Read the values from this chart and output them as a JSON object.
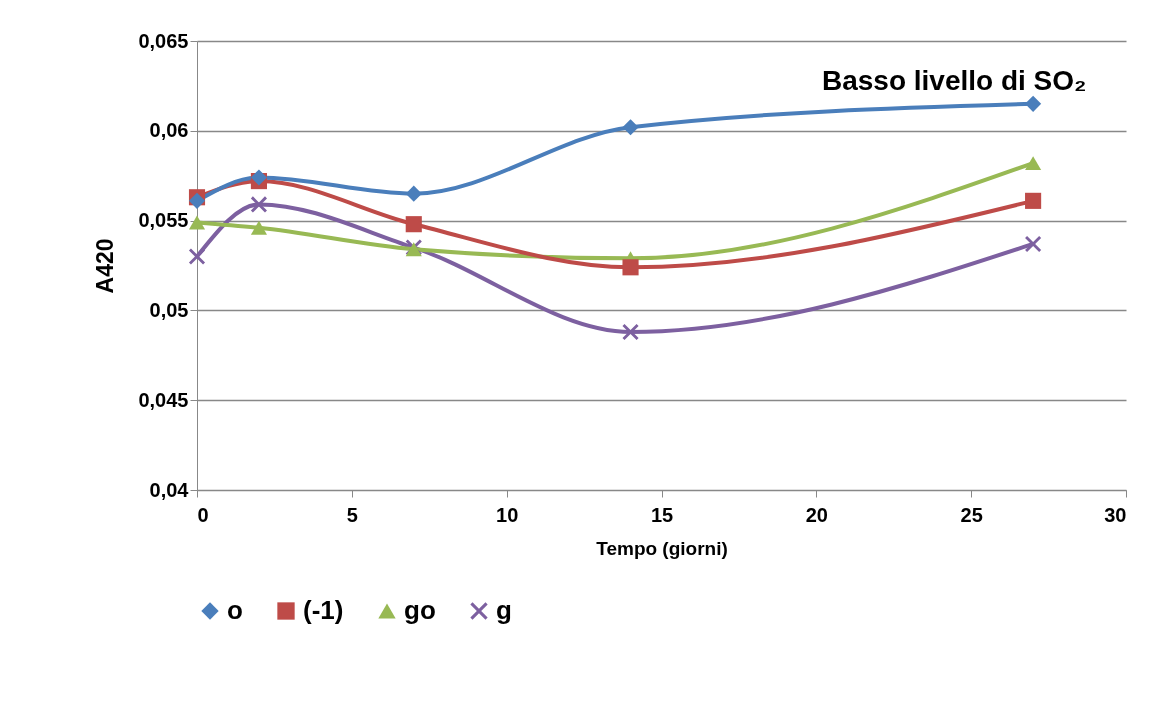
{
  "chart_data": {
    "type": "line",
    "title": "Basso livello di SO₂",
    "xlabel": "Tempo (giorni)",
    "ylabel": "A420",
    "x": [
      0,
      2,
      7,
      14,
      27
    ],
    "series": [
      {
        "name": "o",
        "color": "#4a7ebb",
        "marker": "diamond",
        "values": [
          0.0561,
          0.0574,
          0.0565,
          0.0602,
          0.0615
        ]
      },
      {
        "name": "(-1)",
        "color": "#be4b48",
        "marker": "square",
        "values": [
          0.0563,
          0.0572,
          0.0548,
          0.0524,
          0.0561
        ]
      },
      {
        "name": "go",
        "color": "#98b954",
        "marker": "triangle",
        "values": [
          0.0549,
          0.0546,
          0.0534,
          0.0529,
          0.0582
        ]
      },
      {
        "name": "g",
        "color": "#7d60a0",
        "marker": "cross",
        "values": [
          0.053,
          0.0559,
          0.0535,
          0.0488,
          0.0537
        ]
      }
    ],
    "xlim": [
      0,
      30
    ],
    "xticks": [
      0,
      5,
      10,
      15,
      20,
      25,
      30
    ],
    "ylim": [
      0.04,
      0.065
    ],
    "yticks": [
      {
        "value": 0.04,
        "label": "0,04"
      },
      {
        "value": 0.045,
        "label": "0,045"
      },
      {
        "value": 0.05,
        "label": "0,05"
      },
      {
        "value": 0.055,
        "label": "0,055"
      },
      {
        "value": 0.06,
        "label": "0,06"
      },
      {
        "value": 0.065,
        "label": "0,065"
      }
    ],
    "grid": "y",
    "legend": "bottom",
    "line_style": "solid"
  }
}
